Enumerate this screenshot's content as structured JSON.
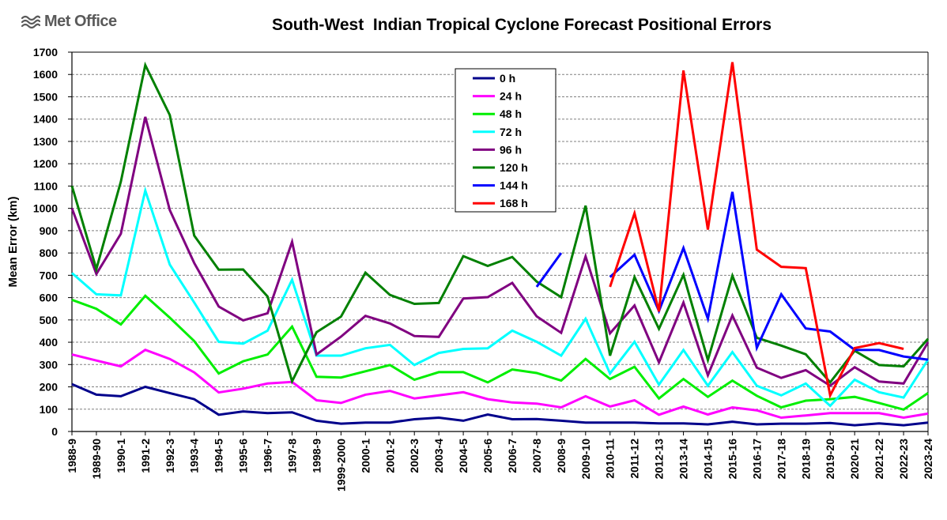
{
  "logo": {
    "text": "Met Office",
    "icon": "met-office-logo-icon"
  },
  "chart_data": {
    "type": "line",
    "title": "South-West  Indian Tropical Cyclone Forecast Positional Errors",
    "xlabel": "",
    "ylabel": "Mean Error (km)",
    "ylim": [
      0,
      1700
    ],
    "ytick_step": 100,
    "grid": true,
    "legend_position": "top-center",
    "categories": [
      "1988-9",
      "1989-90",
      "1990-1",
      "1991-2",
      "1992-3",
      "1993-4",
      "1994-5",
      "1995-6",
      "1996-7",
      "1997-8",
      "1998-9",
      "1999-2000",
      "2000-1",
      "2001-2",
      "2002-3",
      "2003-4",
      "2004-5",
      "2005-6",
      "2006-7",
      "2007-8",
      "2008-9",
      "2009-10",
      "2010-11",
      "2011-12",
      "2012-13",
      "2013-14",
      "2014-15",
      "2015-16",
      "2016-17",
      "2017-18",
      "2018-19",
      "2019-20",
      "2020-21",
      "2021-22",
      "2022-23",
      "2023-24"
    ],
    "series": [
      {
        "name": "0 h",
        "color": "#00008b",
        "values": [
          212,
          165,
          158,
          200,
          172,
          145,
          75,
          90,
          82,
          86,
          48,
          35,
          40,
          40,
          55,
          62,
          48,
          76,
          55,
          56,
          48,
          40,
          40,
          40,
          36,
          36,
          32,
          44,
          32,
          35,
          35,
          38,
          28,
          36,
          28,
          40
        ]
      },
      {
        "name": "24 h",
        "color": "#ff00ff",
        "values": [
          345,
          318,
          292,
          366,
          325,
          265,
          175,
          192,
          215,
          222,
          140,
          128,
          165,
          182,
          148,
          162,
          176,
          145,
          130,
          125,
          108,
          158,
          112,
          140,
          75,
          112,
          76,
          108,
          95,
          62,
          72,
          82,
          82,
          82,
          62,
          80
        ]
      },
      {
        "name": "48 h",
        "color": "#00ee00",
        "values": [
          590,
          550,
          480,
          608,
          510,
          405,
          260,
          315,
          345,
          470,
          245,
          242,
          270,
          298,
          232,
          266,
          266,
          220,
          278,
          262,
          228,
          325,
          235,
          290,
          148,
          235,
          155,
          228,
          160,
          108,
          138,
          145,
          155,
          128,
          98,
          172
        ]
      },
      {
        "name": "72 h",
        "color": "#00ffff",
        "values": [
          710,
          615,
          610,
          1080,
          748,
          578,
          402,
          394,
          452,
          680,
          340,
          340,
          373,
          388,
          298,
          352,
          370,
          373,
          452,
          402,
          340,
          505,
          260,
          402,
          210,
          365,
          205,
          356,
          205,
          162,
          215,
          115,
          232,
          176,
          152,
          322
        ]
      },
      {
        "name": "96 h",
        "color": "#800080",
        "values": [
          1000,
          706,
          886,
          1410,
          992,
          755,
          560,
          498,
          530,
          850,
          345,
          425,
          518,
          484,
          428,
          424,
          596,
          602,
          666,
          516,
          442,
          785,
          440,
          565,
          310,
          578,
          252,
          520,
          286,
          240,
          275,
          205,
          288,
          224,
          215,
          400
        ]
      },
      {
        "name": "120 h",
        "color": "#008000",
        "values": [
          1100,
          728,
          1120,
          1642,
          1418,
          878,
          725,
          726,
          605,
          225,
          445,
          515,
          712,
          612,
          572,
          576,
          786,
          742,
          782,
          672,
          602,
          1012,
          340,
          692,
          460,
          702,
          320,
          698,
          420,
          385,
          346,
          220,
          362,
          298,
          292,
          415
        ]
      },
      {
        "name": "144 h",
        "color": "#0000ff",
        "values": [
          null,
          null,
          null,
          null,
          null,
          null,
          null,
          null,
          null,
          null,
          null,
          null,
          null,
          null,
          null,
          null,
          null,
          null,
          null,
          648,
          800,
          null,
          692,
          792,
          540,
          822,
          505,
          1074,
          375,
          615,
          462,
          448,
          366,
          365,
          336,
          322
        ]
      },
      {
        "name": "168 h",
        "color": "#ff0000",
        "values": [
          null,
          null,
          null,
          null,
          null,
          null,
          null,
          null,
          null,
          null,
          null,
          null,
          null,
          null,
          null,
          null,
          null,
          null,
          null,
          null,
          null,
          null,
          648,
          978,
          538,
          1618,
          905,
          1655,
          815,
          738,
          732,
          162,
          374,
          396,
          370,
          null
        ]
      }
    ]
  }
}
